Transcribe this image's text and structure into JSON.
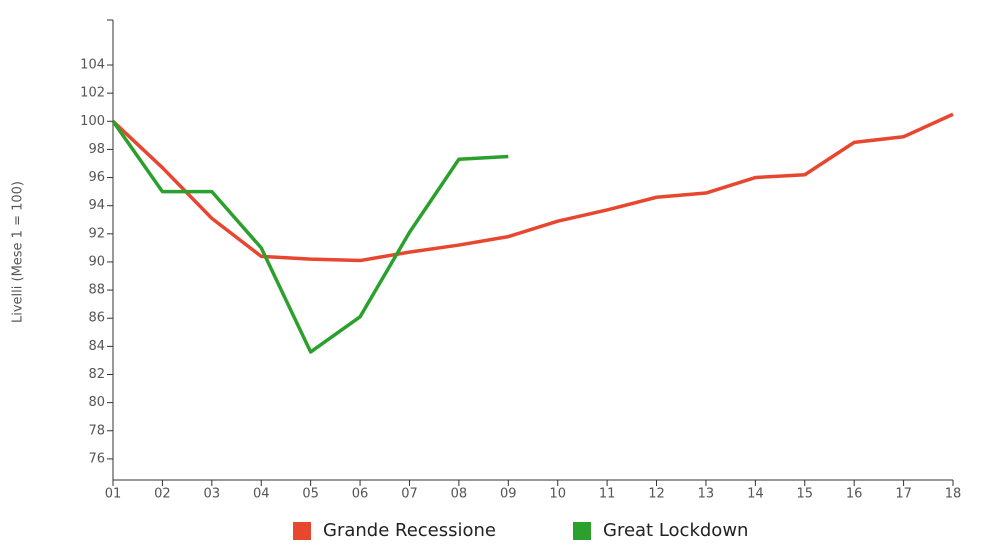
{
  "chart_data": {
    "type": "line",
    "y_label": "Livelli (Mese 1 = 100)",
    "categories": [
      "01",
      "02",
      "03",
      "04",
      "05",
      "06",
      "07",
      "08",
      "09",
      "10",
      "11",
      "12",
      "13",
      "14",
      "15",
      "16",
      "17",
      "18"
    ],
    "series": [
      {
        "name": "Grande Recessione",
        "color": "#e8472f",
        "values": [
          100,
          96.7,
          93.1,
          90.4,
          90.2,
          90.1,
          90.7,
          91.2,
          91.8,
          92.9,
          93.7,
          94.6,
          94.9,
          96.0,
          96.2,
          98.5,
          98.9,
          100.5
        ]
      },
      {
        "name": "Great Lockdown",
        "color": "#2ca02c",
        "values": [
          100,
          95.0,
          95.0,
          91.0,
          83.6,
          86.1,
          92.1,
          97.3,
          97.5,
          null,
          null,
          null,
          null,
          null,
          null,
          null,
          null,
          null
        ]
      }
    ],
    "ylim": [
      74.5,
      107.2
    ],
    "yticks": [
      76,
      78,
      80,
      82,
      84,
      86,
      88,
      90,
      92,
      94,
      96,
      98,
      100,
      102,
      104
    ],
    "grid": false,
    "legend": "bottom"
  }
}
